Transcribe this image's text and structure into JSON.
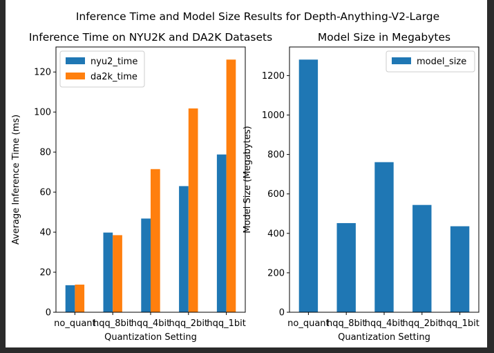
{
  "figure": {
    "suptitle": "Inference Time and Model Size Results for Depth-Anything-V2-Large"
  },
  "colors": {
    "blue": "#1f77b4",
    "orange": "#ff7f0e"
  },
  "chart_data": [
    {
      "type": "bar",
      "title": "Inference Time on NYU2K and DA2K Datasets",
      "xlabel": "Quantization Setting",
      "ylabel": "Average Inference Time (ms)",
      "categories": [
        "no_quant",
        "hqq_8bit",
        "hqq_4bit",
        "hqq_2bit",
        "hqq_1bit"
      ],
      "series": [
        {
          "name": "nyu2_time",
          "values": [
            13.5,
            39.8,
            46.8,
            63.0,
            78.8
          ],
          "color": "#1f77b4"
        },
        {
          "name": "da2k_time",
          "values": [
            13.8,
            38.5,
            71.5,
            101.8,
            126.2
          ],
          "color": "#ff7f0e"
        }
      ],
      "ylim": [
        0,
        132.5
      ],
      "yticks": [
        0,
        20,
        40,
        60,
        80,
        100,
        120
      ],
      "legend": "upper left",
      "grid": false
    },
    {
      "type": "bar",
      "title": "Model Size in Megabytes",
      "xlabel": "Quantization Setting",
      "ylabel": "Model Size (Megabytes)",
      "categories": [
        "no_quant",
        "hqq_8bit",
        "hqq_4bit",
        "hqq_2bit",
        "hqq_1bit"
      ],
      "series": [
        {
          "name": "model_size",
          "values": [
            1281,
            452,
            761,
            544,
            436
          ],
          "color": "#1f77b4"
        }
      ],
      "ylim": [
        0,
        1345
      ],
      "yticks": [
        0,
        200,
        400,
        600,
        800,
        1000,
        1200
      ],
      "legend": "upper right",
      "grid": false
    }
  ]
}
